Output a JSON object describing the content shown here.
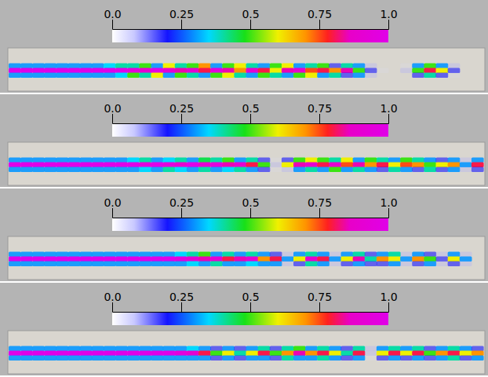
{
  "chart_data": [
    {
      "type": "heatmap",
      "colorbar": {
        "lim": [
          0,
          1
        ],
        "ticks": [
          {
            "value": 0,
            "label": "0.0"
          },
          0.25,
          0.5,
          0.75,
          {
            "value": 1,
            "label": "1.0"
          }
        ]
      },
      "cells": [
        [
          0.3,
          0.3,
          0.3,
          0.3,
          0.3,
          0.3,
          0.3,
          0.3,
          0.35,
          0.4,
          0.4,
          0.5,
          0.3,
          0.6,
          0.4,
          0.5,
          0.7,
          0.3,
          0.5,
          0.6,
          0.4,
          0.3,
          0.5,
          0.6,
          0.3,
          0.4,
          0.5,
          0.2,
          0.4,
          0.3,
          0.1,
          0,
          0,
          0.05,
          0.3,
          0.5,
          0.3,
          0.1,
          0,
          0
        ],
        [
          1,
          1,
          1,
          1,
          1,
          1,
          1,
          1,
          1,
          1,
          0.95,
          0.9,
          1,
          0.9,
          0.85,
          0.9,
          0.8,
          0.95,
          0.85,
          0.7,
          0.9,
          0.8,
          0.6,
          0.85,
          0.9,
          0.75,
          0.8,
          0.7,
          0.85,
          0.5,
          0.2,
          0.05,
          0,
          0.1,
          0.5,
          0.8,
          0.6,
          0.2,
          0,
          0
        ],
        [
          0.3,
          0.3,
          0.3,
          0.3,
          0.3,
          0.3,
          0.3,
          0.3,
          0.3,
          0.35,
          0.5,
          0.4,
          0.6,
          0.3,
          0.5,
          0.4,
          0.3,
          0.5,
          0.6,
          0.4,
          0.3,
          0.5,
          0.4,
          0.3,
          0.5,
          0.6,
          0.3,
          0.4,
          0.2,
          0.3,
          0.1,
          0,
          0,
          0,
          0.2,
          0.4,
          0.2,
          0.05,
          0,
          0
        ]
      ]
    },
    {
      "type": "heatmap",
      "colorbar": {
        "lim": [
          0,
          1
        ],
        "ticks": [
          {
            "value": 0,
            "label": "0.0"
          },
          0.25,
          0.5,
          0.75,
          {
            "value": 1,
            "label": "1.0"
          }
        ]
      },
      "cells": [
        [
          0.3,
          0.3,
          0.3,
          0.3,
          0.3,
          0.3,
          0.3,
          0.3,
          0.3,
          0.3,
          0.35,
          0.4,
          0.3,
          0.35,
          0.4,
          0.3,
          0.45,
          0.4,
          0.5,
          0.3,
          0.4,
          0.2,
          0.05,
          0.2,
          0.5,
          0.6,
          0.5,
          0.4,
          0.6,
          0.3,
          0.5,
          0.4,
          0.3,
          0.5,
          0.4,
          0.3,
          0.2,
          0.3,
          0.1,
          0.3
        ],
        [
          1,
          1,
          1,
          1,
          1,
          1,
          1,
          1,
          1,
          1,
          1,
          0.95,
          1,
          0.95,
          0.9,
          1,
          0.9,
          0.95,
          0.85,
          0.9,
          0.8,
          0.5,
          0.1,
          0.6,
          0.85,
          0.9,
          0.8,
          0.9,
          0.75,
          0.85,
          0.7,
          0.8,
          0.6,
          0.75,
          0.7,
          0.5,
          0.6,
          0.7,
          0.3,
          0.8
        ],
        [
          0.3,
          0.3,
          0.3,
          0.3,
          0.3,
          0.3,
          0.3,
          0.3,
          0.3,
          0.3,
          0.3,
          0.35,
          0.3,
          0.4,
          0.35,
          0.3,
          0.4,
          0.3,
          0.35,
          0.4,
          0.3,
          0.2,
          0.05,
          0.1,
          0.3,
          0.4,
          0.3,
          0.5,
          0.3,
          0.4,
          0.3,
          0.2,
          0.4,
          0.3,
          0.2,
          0.4,
          0.2,
          0.3,
          0.1,
          0.2
        ]
      ]
    },
    {
      "type": "heatmap",
      "colorbar": {
        "lim": [
          0,
          1
        ],
        "ticks": [
          {
            "value": 0,
            "label": "0.0"
          },
          0.25,
          0.5,
          0.75,
          {
            "value": 1,
            "label": "1.0"
          }
        ]
      },
      "cells": [
        [
          0.3,
          0.3,
          0.3,
          0.3,
          0.3,
          0.3,
          0.3,
          0.3,
          0.3,
          0.3,
          0.3,
          0.3,
          0.3,
          0.3,
          0.35,
          0.4,
          0.5,
          0.3,
          0.4,
          0.3,
          0.4,
          0.3,
          0.2,
          0.1,
          0.3,
          0.4,
          0.3,
          0.1,
          0.3,
          0.4,
          0.2,
          0.3,
          0.4,
          0.1,
          0.3,
          0.2,
          0.1,
          0.3,
          0.1,
          0
        ],
        [
          1,
          1,
          1,
          1,
          1,
          1,
          1,
          1,
          1,
          1,
          1,
          1,
          1,
          1,
          0.95,
          0.9,
          0.85,
          0.9,
          0.8,
          0.85,
          0.9,
          0.7,
          0.8,
          0.3,
          0.6,
          0.9,
          0.8,
          0.3,
          0.6,
          0.85,
          0.4,
          0.7,
          0.6,
          0.3,
          0.7,
          0.5,
          0.2,
          0.6,
          0.3,
          0
        ],
        [
          0.3,
          0.3,
          0.3,
          0.3,
          0.3,
          0.3,
          0.3,
          0.3,
          0.3,
          0.3,
          0.3,
          0.3,
          0.3,
          0.3,
          0.3,
          0.35,
          0.3,
          0.4,
          0.3,
          0.3,
          0.35,
          0.3,
          0.3,
          0.1,
          0.2,
          0.4,
          0.3,
          0.1,
          0.2,
          0.3,
          0.2,
          0.2,
          0.3,
          0.1,
          0.2,
          0.3,
          0.1,
          0.2,
          0.1,
          0
        ]
      ]
    },
    {
      "type": "heatmap",
      "colorbar": {
        "lim": [
          0,
          1
        ],
        "ticks": [
          {
            "value": 0,
            "label": "0.0"
          },
          0.25,
          0.5,
          0.75,
          {
            "value": 1,
            "label": "1.0"
          }
        ]
      },
      "cells": [
        [
          0.3,
          0.3,
          0.3,
          0.3,
          0.3,
          0.3,
          0.3,
          0.3,
          0.3,
          0.3,
          0.3,
          0.3,
          0.3,
          0.3,
          0.3,
          0.35,
          0.3,
          0.2,
          0.3,
          0.2,
          0.3,
          0.4,
          0.2,
          0.4,
          0.5,
          0.3,
          0.4,
          0.3,
          0.2,
          0.4,
          0.1,
          0.3,
          0.4,
          0.3,
          0.4,
          0.2,
          0.3,
          0.4,
          0.3,
          0.2
        ],
        [
          1,
          1,
          1,
          1,
          1,
          1,
          1,
          1,
          1,
          1,
          1,
          1,
          1,
          1,
          0.95,
          0.9,
          0.8,
          0.5,
          0.6,
          0.4,
          0.6,
          0.8,
          0.5,
          0.7,
          0.85,
          0.7,
          0.8,
          0.6,
          0.4,
          0.8,
          0.1,
          0.6,
          0.8,
          0.6,
          0.8,
          0.5,
          0.7,
          0.8,
          0.6,
          0.7
        ],
        [
          0.3,
          0.3,
          0.3,
          0.3,
          0.3,
          0.3,
          0.3,
          0.3,
          0.3,
          0.3,
          0.3,
          0.3,
          0.3,
          0.3,
          0.3,
          0.3,
          0.3,
          0.2,
          0.3,
          0.2,
          0.3,
          0.3,
          0.2,
          0.4,
          0.3,
          0.3,
          0.4,
          0.3,
          0.2,
          0.3,
          0.05,
          0.2,
          0.3,
          0.2,
          0.3,
          0.2,
          0.3,
          0.4,
          0.2,
          0.3
        ]
      ]
    }
  ]
}
